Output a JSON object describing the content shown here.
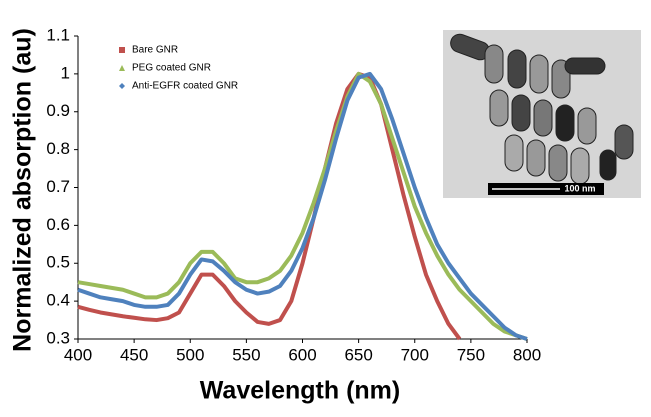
{
  "chart_data": {
    "type": "line",
    "xlabel": "Wavelength (nm)",
    "ylabel": "Normalized absorption (au)",
    "x": [
      400,
      410,
      420,
      430,
      440,
      450,
      460,
      470,
      480,
      490,
      500,
      510,
      520,
      530,
      540,
      550,
      560,
      570,
      580,
      590,
      600,
      610,
      620,
      630,
      640,
      650,
      660,
      670,
      680,
      690,
      700,
      710,
      720,
      730,
      740,
      750,
      760,
      770,
      780,
      790,
      800
    ],
    "series": [
      {
        "name": "Bare GNR",
        "color": "#c0504d",
        "marker": "square",
        "values": [
          0.385,
          0.377,
          0.37,
          0.365,
          0.36,
          0.356,
          0.352,
          0.35,
          0.355,
          0.37,
          0.42,
          0.47,
          0.47,
          0.44,
          0.4,
          0.37,
          0.345,
          0.34,
          0.35,
          0.4,
          0.5,
          0.62,
          0.75,
          0.87,
          0.96,
          1.0,
          0.99,
          0.92,
          0.8,
          0.68,
          0.57,
          0.47,
          0.4,
          0.34,
          0.3,
          null,
          null,
          null,
          null,
          null,
          null
        ]
      },
      {
        "name": "PEG coated GNR",
        "color": "#9bbb59",
        "marker": "triangle",
        "values": [
          0.45,
          0.445,
          0.44,
          0.435,
          0.43,
          0.42,
          0.41,
          0.41,
          0.42,
          0.45,
          0.5,
          0.53,
          0.53,
          0.5,
          0.46,
          0.45,
          0.45,
          0.46,
          0.48,
          0.52,
          0.58,
          0.66,
          0.75,
          0.85,
          0.94,
          1.0,
          0.98,
          0.92,
          0.83,
          0.74,
          0.65,
          0.58,
          0.52,
          0.47,
          0.43,
          0.4,
          0.37,
          0.34,
          0.32,
          0.31,
          0.3
        ]
      },
      {
        "name": "Anti-EGFR coated GNR",
        "color": "#4f81bd",
        "marker": "diamond",
        "values": [
          0.43,
          0.42,
          0.41,
          0.405,
          0.4,
          0.39,
          0.385,
          0.385,
          0.39,
          0.42,
          0.47,
          0.51,
          0.505,
          0.48,
          0.45,
          0.43,
          0.42,
          0.425,
          0.44,
          0.48,
          0.54,
          0.62,
          0.72,
          0.83,
          0.93,
          0.99,
          1.0,
          0.96,
          0.88,
          0.79,
          0.7,
          0.62,
          0.55,
          0.5,
          0.46,
          0.42,
          0.39,
          0.36,
          0.33,
          0.31,
          0.3
        ]
      }
    ],
    "xlim": [
      400,
      800
    ],
    "xticks": [
      400,
      450,
      500,
      550,
      600,
      650,
      700,
      750,
      800
    ],
    "ylim": [
      0.3,
      1.1
    ],
    "yticks": [
      0.3,
      0.4,
      0.5,
      0.6,
      0.7,
      0.8,
      0.9,
      1,
      1.1
    ],
    "legend": "upper left",
    "inset_scale_label": "100 nm"
  }
}
